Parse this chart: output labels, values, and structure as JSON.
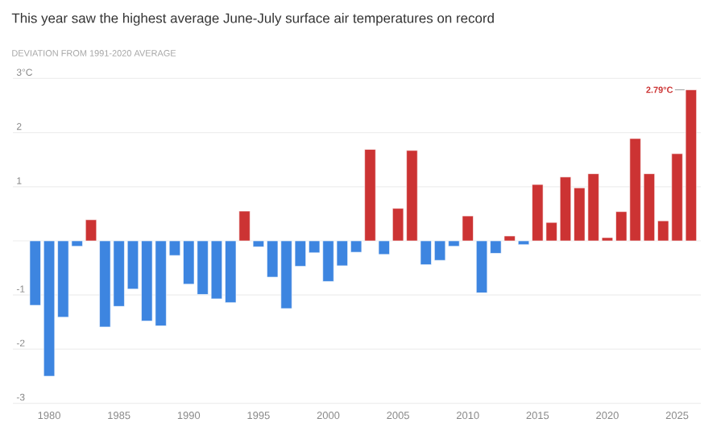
{
  "chart_data": {
    "type": "bar",
    "subtitle": "This year saw the highest average June-July surface air temperatures on record",
    "ylabel": "DEVIATION FROM 1991-2020 AVERAGE",
    "x": [
      1979,
      1980,
      1981,
      1982,
      1983,
      1984,
      1985,
      1986,
      1987,
      1988,
      1989,
      1990,
      1991,
      1992,
      1993,
      1994,
      1995,
      1996,
      1997,
      1998,
      1999,
      2000,
      2001,
      2002,
      2003,
      2004,
      2005,
      2006,
      2007,
      2008,
      2009,
      2010,
      2011,
      2012,
      2013,
      2014,
      2015,
      2016,
      2017,
      2018,
      2019,
      2020,
      2021,
      2022,
      2023,
      2024,
      2025,
      2026
    ],
    "values": [
      -1.19,
      -2.5,
      -1.41,
      -0.1,
      0.39,
      -1.59,
      -1.21,
      -0.89,
      -1.48,
      -1.57,
      -0.27,
      -0.8,
      -0.99,
      -1.07,
      -1.14,
      0.55,
      -0.11,
      -0.67,
      -1.25,
      -0.47,
      -0.22,
      -0.75,
      -0.46,
      -0.21,
      1.69,
      -0.25,
      0.6,
      1.67,
      -0.44,
      -0.36,
      -0.1,
      0.46,
      -0.96,
      -0.23,
      0.09,
      -0.07,
      1.04,
      0.34,
      1.18,
      0.98,
      1.24,
      0.06,
      0.54,
      1.89,
      1.24,
      0.37,
      1.61,
      2.79
    ],
    "colors": [
      "#3d85e0",
      "#3d85e0",
      "#3d85e0",
      "#3d85e0",
      "#cc3333",
      "#3d85e0",
      "#3d85e0",
      "#3d85e0",
      "#3d85e0",
      "#3d85e0",
      "#3d85e0",
      "#3d85e0",
      "#3d85e0",
      "#3d85e0",
      "#3d85e0",
      "#cc3333",
      "#3d85e0",
      "#3d85e0",
      "#3d85e0",
      "#3d85e0",
      "#3d85e0",
      "#3d85e0",
      "#3d85e0",
      "#3d85e0",
      "#cc3333",
      "#3d85e0",
      "#cc3333",
      "#cc3333",
      "#3d85e0",
      "#3d85e0",
      "#3d85e0",
      "#cc3333",
      "#3d85e0",
      "#3d85e0",
      "#cc3333",
      "#3d85e0",
      "#cc3333",
      "#cc3333",
      "#cc3333",
      "#cc3333",
      "#cc3333",
      "#cc3333",
      "#cc3333",
      "#cc3333",
      "#cc3333",
      "#cc3333",
      "#cc3333",
      "#cc3333"
    ],
    "xlim": [
      1977.4,
      2026.7
    ],
    "xticks": [
      1980,
      1985,
      1990,
      1995,
      2000,
      2005,
      2010,
      2015,
      2020,
      2025
    ],
    "ylim": [
      -3.05,
      3.05
    ],
    "yticks": [
      {
        "value": 3,
        "label": "3°C"
      },
      2,
      1,
      {
        "value": 0,
        "label": null
      },
      -1,
      -2,
      -3
    ],
    "grid": "y",
    "annotations": [
      {
        "text": "2.79°C",
        "x": 2026,
        "y": 2.79
      }
    ]
  }
}
